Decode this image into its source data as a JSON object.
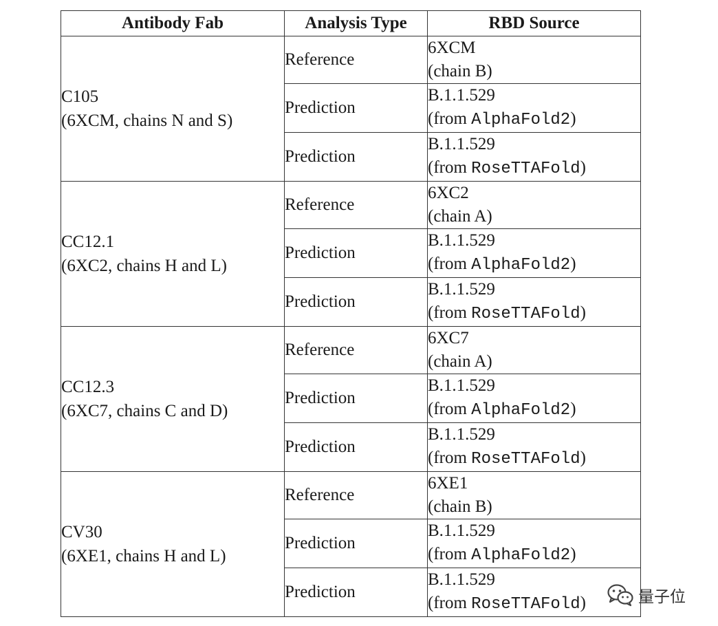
{
  "table": {
    "headers": [
      "Antibody Fab",
      "Analysis Type",
      "RBD Source"
    ],
    "groups": [
      {
        "antibody": "C105",
        "structure": "(6XCM, chains N and S)",
        "rows": [
          {
            "type": "Reference",
            "source_line1": "6XCM",
            "source_line2": "(chain B)"
          },
          {
            "type": "Prediction",
            "source_line1": "B.1.1.529",
            "source_prefix": "(from ",
            "source_tool": "AlphaFold2",
            "source_suffix": ")"
          },
          {
            "type": "Prediction",
            "source_line1": "B.1.1.529",
            "source_prefix": "(from ",
            "source_tool": "RoseTTAFold",
            "source_suffix": ")"
          }
        ]
      },
      {
        "antibody": "CC12.1",
        "structure": "(6XC2, chains H and L)",
        "rows": [
          {
            "type": "Reference",
            "source_line1": "6XC2",
            "source_line2": "(chain A)"
          },
          {
            "type": "Prediction",
            "source_line1": "B.1.1.529",
            "source_prefix": "(from ",
            "source_tool": "AlphaFold2",
            "source_suffix": ")"
          },
          {
            "type": "Prediction",
            "source_line1": "B.1.1.529",
            "source_prefix": "(from ",
            "source_tool": "RoseTTAFold",
            "source_suffix": ")"
          }
        ]
      },
      {
        "antibody": "CC12.3",
        "structure": "(6XC7, chains C and D)",
        "rows": [
          {
            "type": "Reference",
            "source_line1": "6XC7",
            "source_line2": "(chain A)"
          },
          {
            "type": "Prediction",
            "source_line1": "B.1.1.529",
            "source_prefix": "(from ",
            "source_tool": "AlphaFold2",
            "source_suffix": ")"
          },
          {
            "type": "Prediction",
            "source_line1": "B.1.1.529",
            "source_prefix": "(from ",
            "source_tool": "RoseTTAFold",
            "source_suffix": ")"
          }
        ]
      },
      {
        "antibody": "CV30",
        "structure": "(6XE1, chains H and L)",
        "rows": [
          {
            "type": "Reference",
            "source_line1": "6XE1",
            "source_line2": "(chain B)"
          },
          {
            "type": "Prediction",
            "source_line1": "B.1.1.529",
            "source_prefix": "(from ",
            "source_tool": "AlphaFold2",
            "source_suffix": ")"
          },
          {
            "type": "Prediction",
            "source_line1": "B.1.1.529",
            "source_prefix": "(from ",
            "source_tool": "RoseTTAFold",
            "source_suffix": ")"
          }
        ]
      }
    ]
  },
  "watermark": {
    "icon": "wechat-icon",
    "text": "量子位"
  }
}
